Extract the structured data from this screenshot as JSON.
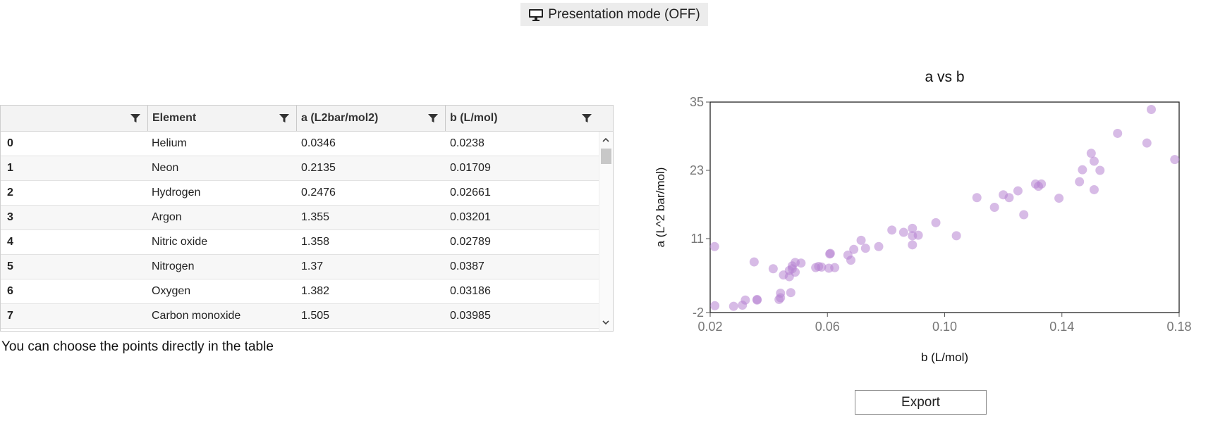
{
  "toolbar": {
    "presentation_label": "Presentation mode (OFF)",
    "icon": "monitor-icon"
  },
  "table": {
    "columns": [
      "",
      "Element",
      "a (L2bar/mol2)",
      "b (L/mol)"
    ],
    "rows": [
      {
        "idx": "0",
        "element": "Helium",
        "a": "0.0346",
        "b": "0.0238"
      },
      {
        "idx": "1",
        "element": "Neon",
        "a": "0.2135",
        "b": "0.01709"
      },
      {
        "idx": "2",
        "element": "Hydrogen",
        "a": "0.2476",
        "b": "0.02661"
      },
      {
        "idx": "3",
        "element": "Argon",
        "a": "1.355",
        "b": "0.03201"
      },
      {
        "idx": "4",
        "element": "Nitric oxide",
        "a": "1.358",
        "b": "0.02789"
      },
      {
        "idx": "5",
        "element": "Nitrogen",
        "a": "1.37",
        "b": "0.0387"
      },
      {
        "idx": "6",
        "element": "Oxygen",
        "a": "1.382",
        "b": "0.03186"
      },
      {
        "idx": "7",
        "element": "Carbon monoxide",
        "a": "1.505",
        "b": "0.03985"
      }
    ]
  },
  "hint": "You can choose the points directly in the table",
  "export_label": "Export",
  "chart_data": {
    "type": "scatter",
    "title": "a vs b",
    "xlabel": "b (L/mol)",
    "ylabel": "a (L^2 bar/mol)",
    "xlim": [
      0.02,
      0.18
    ],
    "ylim": [
      -2,
      35
    ],
    "xticks": [
      "0.02",
      "0.06",
      "0.10",
      "0.14",
      "0.18"
    ],
    "yticks": [
      "-2",
      "11",
      "23",
      "35"
    ],
    "color": "#b784d1",
    "points": [
      [
        0.0215,
        9.6
      ],
      [
        0.0216,
        -0.8
      ],
      [
        0.028,
        -0.9
      ],
      [
        0.031,
        -0.7
      ],
      [
        0.032,
        0.2
      ],
      [
        0.035,
        6.9
      ],
      [
        0.036,
        0.2
      ],
      [
        0.036,
        0.3
      ],
      [
        0.0415,
        5.7
      ],
      [
        0.0435,
        0.3
      ],
      [
        0.044,
        1.4
      ],
      [
        0.044,
        0.6
      ],
      [
        0.045,
        4.6
      ],
      [
        0.047,
        4.3
      ],
      [
        0.047,
        5.4
      ],
      [
        0.0475,
        1.5
      ],
      [
        0.048,
        5.7
      ],
      [
        0.048,
        6.2
      ],
      [
        0.049,
        5.1
      ],
      [
        0.049,
        6.8
      ],
      [
        0.051,
        6.7
      ],
      [
        0.056,
        5.9
      ],
      [
        0.057,
        6.1
      ],
      [
        0.058,
        6.0
      ],
      [
        0.0605,
        5.8
      ],
      [
        0.0608,
        8.3
      ],
      [
        0.061,
        8.4
      ],
      [
        0.0625,
        5.9
      ],
      [
        0.067,
        8.1
      ],
      [
        0.068,
        7.2
      ],
      [
        0.069,
        9.1
      ],
      [
        0.0715,
        10.7
      ],
      [
        0.073,
        9.3
      ],
      [
        0.0775,
        9.6
      ],
      [
        0.082,
        12.5
      ],
      [
        0.086,
        12.1
      ],
      [
        0.089,
        12.8
      ],
      [
        0.089,
        11.5
      ],
      [
        0.089,
        9.9
      ],
      [
        0.091,
        11.6
      ],
      [
        0.097,
        13.8
      ],
      [
        0.104,
        11.5
      ],
      [
        0.111,
        18.2
      ],
      [
        0.117,
        16.5
      ],
      [
        0.12,
        18.7
      ],
      [
        0.122,
        18.2
      ],
      [
        0.125,
        19.4
      ],
      [
        0.127,
        15.2
      ],
      [
        0.131,
        20.6
      ],
      [
        0.132,
        20.2
      ],
      [
        0.133,
        20.6
      ],
      [
        0.139,
        18.1
      ],
      [
        0.146,
        21.0
      ],
      [
        0.147,
        23.1
      ],
      [
        0.15,
        26.0
      ],
      [
        0.151,
        19.6
      ],
      [
        0.151,
        24.6
      ],
      [
        0.153,
        23.0
      ],
      [
        0.159,
        29.5
      ],
      [
        0.169,
        27.8
      ],
      [
        0.1705,
        33.7
      ],
      [
        0.1785,
        24.9
      ]
    ]
  }
}
